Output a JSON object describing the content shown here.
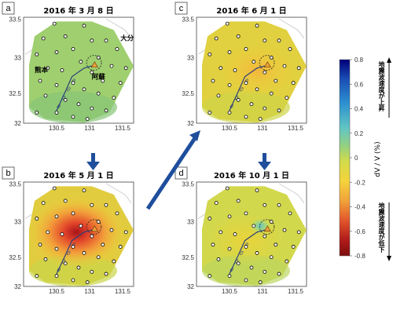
{
  "panels": [
    {
      "letter": "a",
      "title": "2016 年 3 月 8 日"
    },
    {
      "letter": "b",
      "title": "2016 年 5 月 1 日"
    },
    {
      "letter": "c",
      "title": "2016 年 6 月 1 日"
    },
    {
      "letter": "d",
      "title": "2016 年 10 月 1 日"
    }
  ],
  "places": {
    "kumamoto": "熊本",
    "aso": "阿蘇",
    "oita": "大分"
  },
  "axes": {
    "lon_ticks": [
      "130.5",
      "131",
      "131.5"
    ],
    "lat_ticks": [
      "33.5",
      "33",
      "32.5",
      "32"
    ]
  },
  "colorbar": {
    "label": "dV / V (%)",
    "ticks": [
      "0.8",
      "0.6",
      "0.4",
      "0.2",
      "0",
      "-0.2",
      "-0.4",
      "-0.6",
      "-0.8"
    ],
    "upper_note": "地震波速度が上昇",
    "lower_note": "地震波速度が低下",
    "colors": [
      "#00007a",
      "#1a4fb5",
      "#2c8fd0",
      "#62c6c3",
      "#9bd279",
      "#d3dc4a",
      "#f5d33c",
      "#f0a23a",
      "#e2562c",
      "#b01a1a",
      "#7e0e0e"
    ]
  }
}
